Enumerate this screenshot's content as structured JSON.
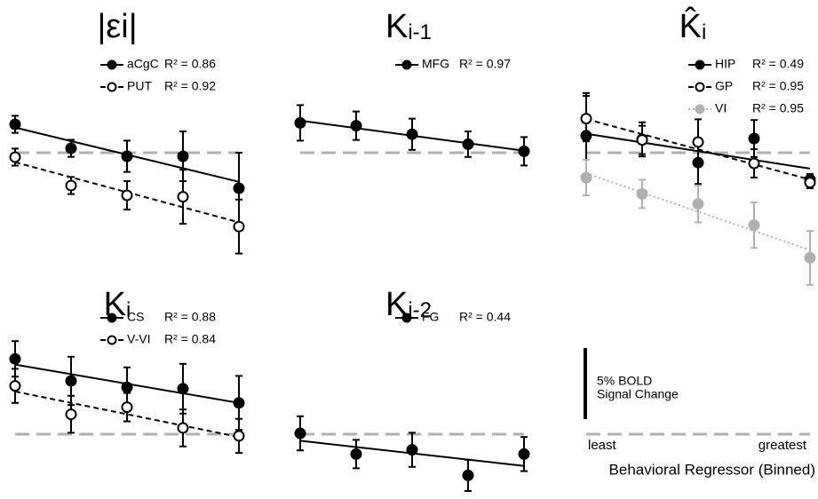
{
  "chart_data": [
    {
      "type": "errorbar",
      "title": "|εi|",
      "series": [
        {
          "name": "aCgC",
          "annotation": "R² = 0.86",
          "color": "#000000",
          "marker": "filled",
          "dash": "solid",
          "values": [
            2.0,
            0.31,
            -0.25,
            -0.25,
            -2.5
          ],
          "errors": [
            0.6,
            0.6,
            1.1,
            1.75,
            2.5
          ]
        },
        {
          "name": "PUT",
          "annotation": "R² = 0.92",
          "color": "#000000",
          "marker": "open",
          "dash": "dashed",
          "values": [
            -0.31,
            -2.31,
            -3.0,
            -3.1,
            -5.2
          ],
          "errors": [
            0.6,
            0.6,
            1.0,
            1.9,
            1.9
          ]
        }
      ]
    },
    {
      "type": "errorbar",
      "title": "K",
      "title_sub": "i-1",
      "series": [
        {
          "name": "MFG",
          "annotation": "R² = 0.97",
          "color": "#000000",
          "marker": "filled",
          "dash": "solid",
          "values": [
            2.1,
            1.9,
            1.3,
            0.6,
            0.1
          ],
          "errors": [
            1.25,
            1.0,
            1.1,
            0.9,
            1.0
          ]
        }
      ]
    },
    {
      "type": "errorbar",
      "title": "K̂",
      "title_sub": "i",
      "series": [
        {
          "name": "HIP",
          "annotation": "R² = 0.49",
          "color": "#000000",
          "marker": "filled",
          "dash": "solid",
          "values": [
            1.2,
            0.94,
            -0.7,
            1.0,
            -1.9
          ],
          "errors": [
            3.0,
            1.2,
            1.5,
            1.3,
            0.4
          ]
        },
        {
          "name": "GP",
          "annotation": "R² = 0.95",
          "color": "#000000",
          "marker": "open",
          "dash": "dashed",
          "values": [
            2.4,
            0.9,
            0.75,
            -0.75,
            -2.1
          ],
          "errors": [
            1.6,
            1.0,
            1.6,
            1.0,
            0.4
          ]
        },
        {
          "name": "VI",
          "annotation": "R² = 0.95",
          "color": "#b0b0b0",
          "marker": "filled",
          "dash": "dotted",
          "values": [
            -1.75,
            -2.9,
            -3.6,
            -5.1,
            -7.4
          ],
          "errors": [
            1.25,
            1.0,
            1.3,
            1.6,
            1.9
          ]
        }
      ]
    },
    {
      "type": "errorbar",
      "title": "K",
      "title_sub": "i",
      "series": [
        {
          "name": "CS",
          "annotation": "R² = 0.88",
          "color": "#000000",
          "marker": "filled",
          "dash": "solid",
          "values": [
            5.3,
            3.75,
            3.3,
            3.2,
            2.2
          ],
          "errors": [
            1.25,
            1.7,
            1.4,
            1.75,
            1.9
          ]
        },
        {
          "name": "V-VI",
          "annotation": "R² = 0.84",
          "color": "#000000",
          "marker": "open",
          "dash": "dashed",
          "values": [
            3.4,
            1.4,
            1.9,
            0.44,
            -0.12
          ],
          "errors": [
            1.2,
            1.3,
            1.0,
            1.3,
            1.2
          ]
        }
      ]
    },
    {
      "type": "errorbar",
      "title": "K",
      "title_sub": "i-2",
      "series": [
        {
          "name": "FG",
          "annotation": "R² = 0.44",
          "color": "#000000",
          "marker": "filled",
          "dash": "solid",
          "values": [
            0.06,
            -1.4,
            -1.1,
            -2.9,
            -1.4
          ],
          "errors": [
            1.2,
            1.0,
            1.2,
            1.1,
            1.2
          ]
        }
      ]
    }
  ],
  "scale_bar": {
    "value": 5,
    "label_lines": [
      "5% BOLD",
      "Signal Change"
    ]
  },
  "x_axis": {
    "label": "Behavioral Regressor (Binned)",
    "start_label": "least",
    "end_label": "greatest"
  }
}
